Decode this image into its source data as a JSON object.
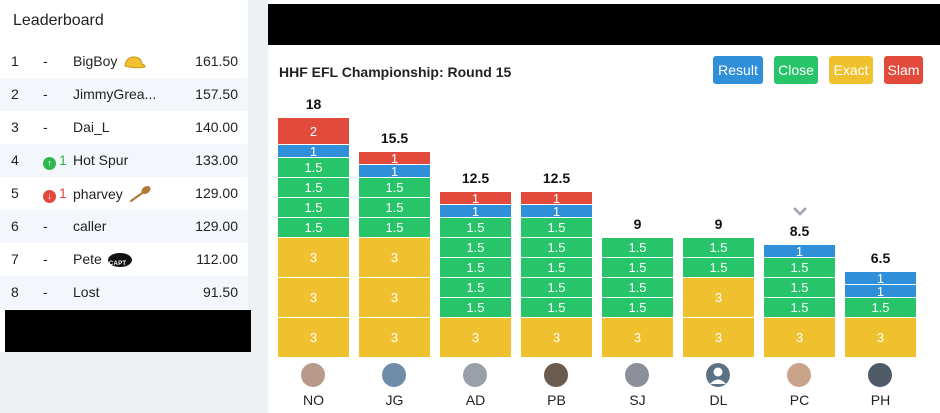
{
  "leaderboard": {
    "title": "Leaderboard",
    "rows": [
      {
        "rank": "1",
        "move": "-",
        "name": "BigBoy",
        "badge": "hat",
        "score": "161.50"
      },
      {
        "rank": "2",
        "move": "-",
        "name": "JimmyGrea...",
        "badge": "",
        "score": "157.50"
      },
      {
        "rank": "3",
        "move": "-",
        "name": "Dai_L",
        "badge": "",
        "score": "140.00"
      },
      {
        "rank": "4",
        "move": "1",
        "move_dir": "up",
        "name": "Hot Spur",
        "badge": "",
        "score": "133.00"
      },
      {
        "rank": "5",
        "move": "1",
        "move_dir": "down",
        "name": "pharvey",
        "badge": "wooden-spoon",
        "score": "129.00"
      },
      {
        "rank": "6",
        "move": "-",
        "name": "caller",
        "badge": "",
        "score": "129.00"
      },
      {
        "rank": "7",
        "move": "-",
        "name": "Pete",
        "badge": "capt",
        "badge_text": "CAPT",
        "score": "112.00"
      },
      {
        "rank": "8",
        "move": "-",
        "name": "Lost",
        "badge": "",
        "score": "91.50"
      }
    ]
  },
  "chart_title": "HHF EFL Championship: Round 15",
  "legend": {
    "result": "Result",
    "close": "Close",
    "exact": "Exact",
    "slam": "Slam"
  },
  "colors": {
    "result": "#2f8fd8",
    "close": "#27c46a",
    "exact": "#f0c12f",
    "slam": "#e24a3b",
    "up": "#2fb64e",
    "down": "#e24a3b"
  },
  "chart_data": {
    "type": "bar",
    "stacked": true,
    "players": [
      {
        "label": "NO",
        "total": "18",
        "segments": [
          {
            "type": "exact",
            "value": 3
          },
          {
            "type": "exact",
            "value": 3
          },
          {
            "type": "exact",
            "value": 3
          },
          {
            "type": "close",
            "value": 1.5
          },
          {
            "type": "close",
            "value": 1.5
          },
          {
            "type": "close",
            "value": 1.5
          },
          {
            "type": "close",
            "value": 1.5
          },
          {
            "type": "result",
            "value": 1
          },
          {
            "type": "slam",
            "value": 2
          }
        ]
      },
      {
        "label": "JG",
        "total": "15.5",
        "segments": [
          {
            "type": "exact",
            "value": 3
          },
          {
            "type": "exact",
            "value": 3
          },
          {
            "type": "exact",
            "value": 3
          },
          {
            "type": "close",
            "value": 1.5
          },
          {
            "type": "close",
            "value": 1.5
          },
          {
            "type": "close",
            "value": 1.5
          },
          {
            "type": "result",
            "value": 1
          },
          {
            "type": "slam",
            "value": 1
          }
        ]
      },
      {
        "label": "AD",
        "total": "12.5",
        "segments": [
          {
            "type": "exact",
            "value": 3
          },
          {
            "type": "close",
            "value": 1.5
          },
          {
            "type": "close",
            "value": 1.5
          },
          {
            "type": "close",
            "value": 1.5
          },
          {
            "type": "close",
            "value": 1.5
          },
          {
            "type": "close",
            "value": 1.5
          },
          {
            "type": "result",
            "value": 1
          },
          {
            "type": "slam",
            "value": 1
          }
        ]
      },
      {
        "label": "PB",
        "total": "12.5",
        "segments": [
          {
            "type": "exact",
            "value": 3
          },
          {
            "type": "close",
            "value": 1.5
          },
          {
            "type": "close",
            "value": 1.5
          },
          {
            "type": "close",
            "value": 1.5
          },
          {
            "type": "close",
            "value": 1.5
          },
          {
            "type": "close",
            "value": 1.5
          },
          {
            "type": "result",
            "value": 1
          },
          {
            "type": "slam",
            "value": 1
          }
        ]
      },
      {
        "label": "SJ",
        "total": "9",
        "segments": [
          {
            "type": "exact",
            "value": 3
          },
          {
            "type": "close",
            "value": 1.5
          },
          {
            "type": "close",
            "value": 1.5
          },
          {
            "type": "close",
            "value": 1.5
          },
          {
            "type": "close",
            "value": 1.5
          }
        ]
      },
      {
        "label": "DL",
        "total": "9",
        "segments": [
          {
            "type": "exact",
            "value": 3
          },
          {
            "type": "exact",
            "value": 3
          },
          {
            "type": "close",
            "value": 1.5
          },
          {
            "type": "close",
            "value": 1.5
          }
        ]
      },
      {
        "label": "PC",
        "total": "8.5",
        "chevron": true,
        "segments": [
          {
            "type": "exact",
            "value": 3
          },
          {
            "type": "close",
            "value": 1.5
          },
          {
            "type": "close",
            "value": 1.5
          },
          {
            "type": "close",
            "value": 1.5
          },
          {
            "type": "result",
            "value": 1
          }
        ]
      },
      {
        "label": "PH",
        "total": "6.5",
        "segments": [
          {
            "type": "exact",
            "value": 3
          },
          {
            "type": "close",
            "value": 1.5
          },
          {
            "type": "result",
            "value": 1
          },
          {
            "type": "result",
            "value": 1
          }
        ]
      }
    ]
  }
}
